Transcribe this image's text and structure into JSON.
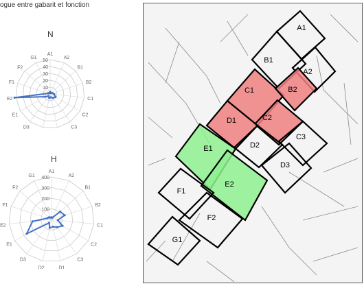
{
  "caption": "ogue entre gabarit et fonction",
  "radars": [
    {
      "title": "N",
      "ring_labels": [
        "10",
        "20",
        "30",
        "40",
        "50"
      ],
      "axis_labels": [
        "A1",
        "A2",
        "B1",
        "B2",
        "C1",
        "C2",
        "C3",
        "D1",
        "D2",
        "D3",
        "E1",
        "E2",
        "F1",
        "F2",
        "G1"
      ],
      "series_color": "#4472c4"
    },
    {
      "title": "H",
      "ring_labels": [
        "100",
        "200",
        "300",
        "400"
      ],
      "axis_labels": [
        "A1",
        "A2",
        "B1",
        "B2",
        "C1",
        "C2",
        "C3",
        "D1",
        "D2",
        "D3",
        "E1",
        "E2",
        "F1",
        "F2",
        "G1"
      ],
      "series_color": "#4472c4"
    }
  ],
  "map": {
    "zones": [
      {
        "label": "A1",
        "color": "none"
      },
      {
        "label": "B1",
        "color": "none"
      },
      {
        "label": "A2",
        "color": "none"
      },
      {
        "label": "C1",
        "color": "red"
      },
      {
        "label": "B2",
        "color": "red"
      },
      {
        "label": "C2",
        "color": "red"
      },
      {
        "label": "D1",
        "color": "red"
      },
      {
        "label": "D2",
        "color": "none"
      },
      {
        "label": "C3",
        "color": "none"
      },
      {
        "label": "E1",
        "color": "green"
      },
      {
        "label": "E2",
        "color": "green"
      },
      {
        "label": "D3",
        "color": "none"
      },
      {
        "label": "F1",
        "color": "none"
      },
      {
        "label": "F2",
        "color": "none"
      },
      {
        "label": "G1",
        "color": "none"
      }
    ],
    "colors": {
      "red": "#f08080",
      "green": "#8ef08e"
    }
  }
}
